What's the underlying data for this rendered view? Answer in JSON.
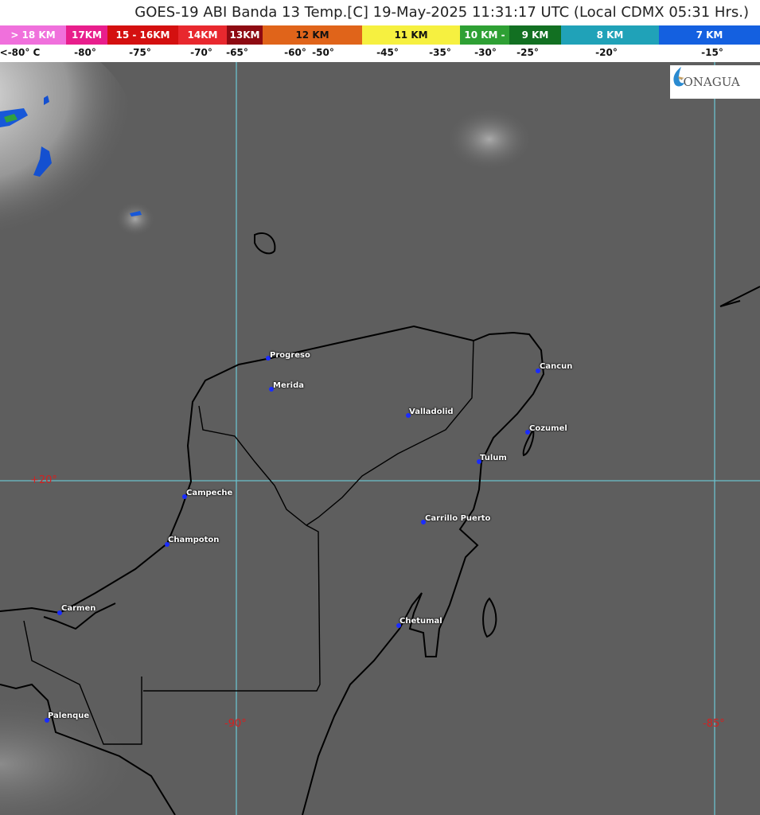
{
  "title": "GOES-19 ABI Banda 13 Temp.[C] 19-May-2025 11:31:17 UTC (Local CDMX  05:31 Hrs.)",
  "legend": [
    {
      "label": "> 18 KM",
      "color": "#f070dc",
      "text": "#fff"
    },
    {
      "label": "17KM",
      "color": "#e81e8c",
      "text": "#fff"
    },
    {
      "label": "15 - 16KM",
      "color": "#d41010",
      "text": "#fff"
    },
    {
      "label": "14KM",
      "color": "#e8282e",
      "text": "#fff"
    },
    {
      "label": "13KM",
      "color": "#8e0a12",
      "text": "#fff"
    },
    {
      "label": "12 KM",
      "color": "#e0641a",
      "text": "#111"
    },
    {
      "label": "11 KM",
      "color": "#f6f040",
      "text": "#111"
    },
    {
      "label": "10 KM -",
      "color": "#2ea034",
      "text": "#fff"
    },
    {
      "label": "9 KM",
      "color": "#127022",
      "text": "#fff"
    },
    {
      "label": "8 KM",
      "color": "#20a2b8",
      "text": "#fff"
    },
    {
      "label": "7 KM",
      "color": "#1460e0",
      "text": "#fff"
    }
  ],
  "temperatures": [
    "<-80° C",
    "-80°",
    "-75°",
    "-70°",
    "-65°",
    "-60°",
    "-50°",
    "-45°",
    "-35°",
    "-30°",
    "-25°",
    "-20°",
    "-15°"
  ],
  "logo": "CONAGUA",
  "grid_labels": {
    "lat20": "+20°",
    "lon90": "-90°",
    "lon85": "-85°"
  },
  "cities": [
    "Progreso",
    "Merida",
    "Valladolid",
    "Cancun",
    "Cozumel",
    "Tulum",
    "Campeche",
    "Carrillo Puerto",
    "Champoton",
    "Carmen",
    "Chetumal",
    "Palenque"
  ]
}
